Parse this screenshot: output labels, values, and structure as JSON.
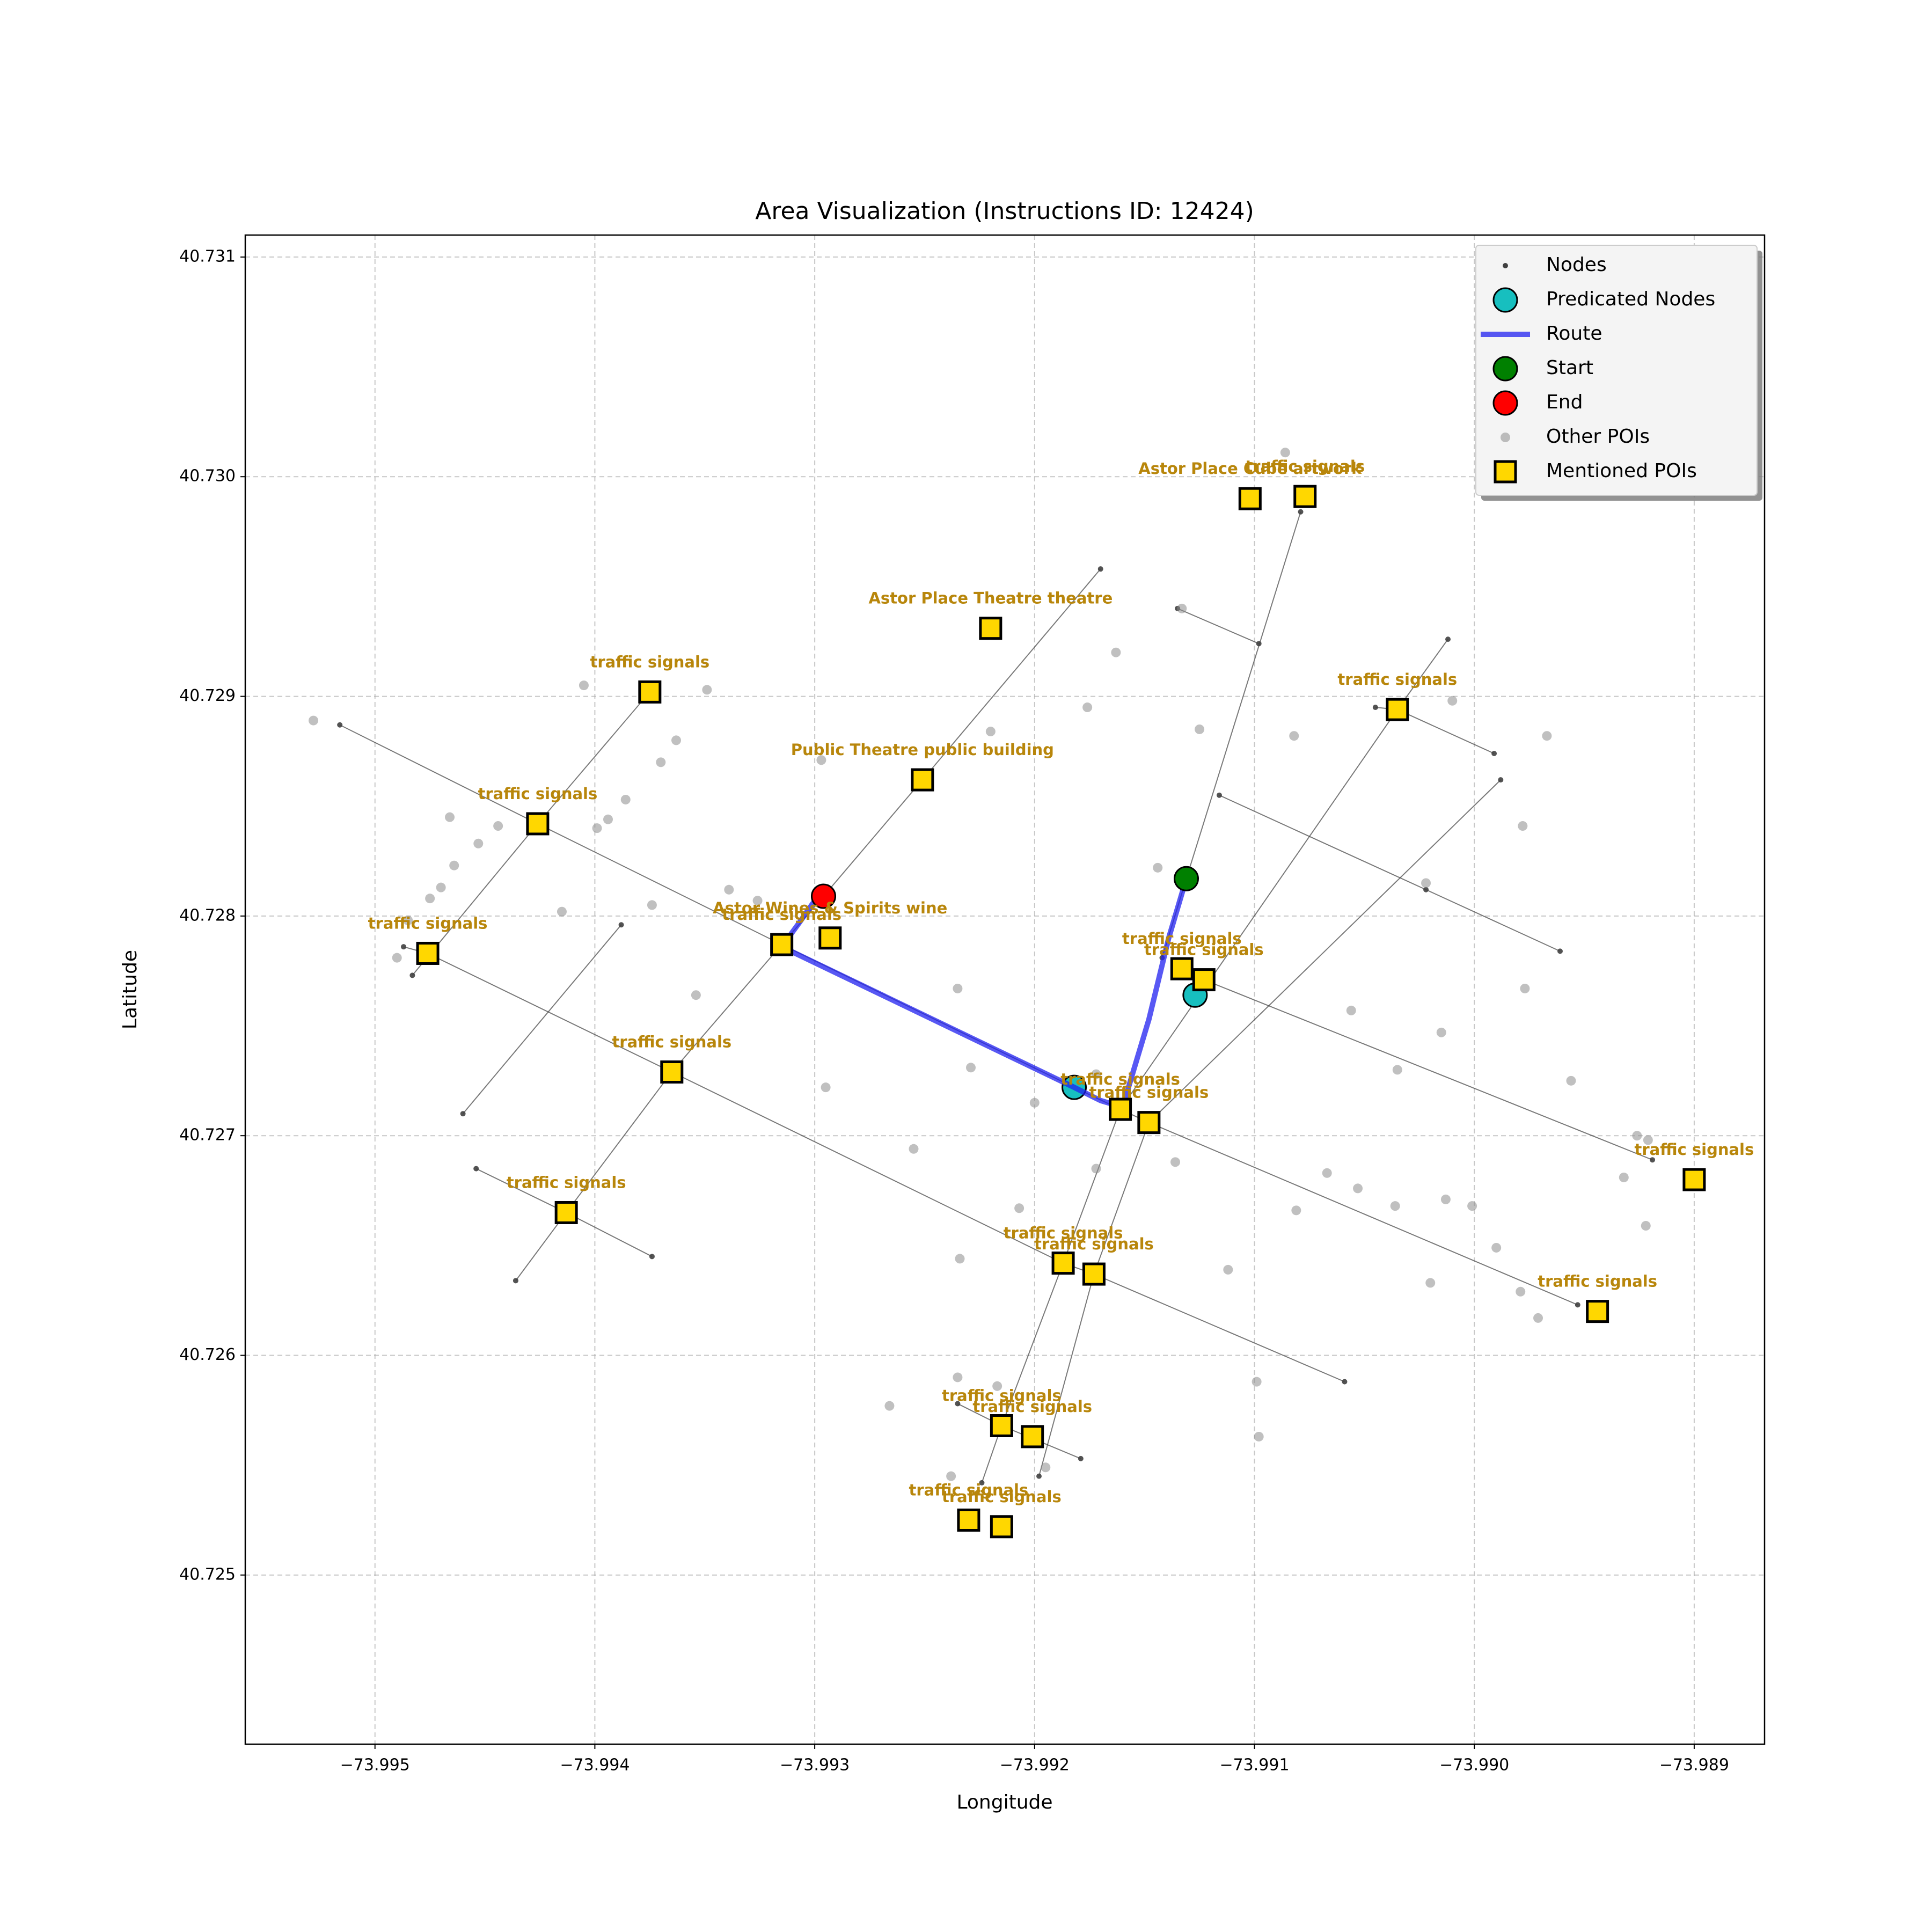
{
  "chart_data": {
    "type": "scatter",
    "title": "Area Visualization (Instructions ID: 12424)",
    "xlabel": "Longitude",
    "ylabel": "Latitude",
    "xlim": [
      -73.99559,
      -73.98868
    ],
    "ylim": [
      40.72423,
      40.7311
    ],
    "xticks": [
      {
        "value": -73.995,
        "label": "−73.995"
      },
      {
        "value": -73.994,
        "label": "−73.994"
      },
      {
        "value": -73.993,
        "label": "−73.993"
      },
      {
        "value": -73.992,
        "label": "−73.992"
      },
      {
        "value": -73.991,
        "label": "−73.991"
      },
      {
        "value": -73.99,
        "label": "−73.990"
      },
      {
        "value": -73.989,
        "label": "−73.989"
      }
    ],
    "yticks": [
      40.725,
      40.726,
      40.727,
      40.728,
      40.729,
      {
        "value": 40.73,
        "label": "40.730"
      },
      40.731
    ],
    "grid": true,
    "legend": "upper right",
    "series": [
      {
        "name": "Nodes",
        "color": "#404040",
        "marker": "dot",
        "streets": [
          {
            "x": [
              -73.99516,
              -73.99426,
              -73.99315,
              -73.99182,
              -73.99161,
              -73.99148,
              -73.98953
            ],
            "y": [
              40.72887,
              40.72842,
              40.72787,
              40.72722,
              40.72712,
              40.72706,
              40.72623
            ]
          },
          {
            "x": [
              -73.99487,
              -73.99476,
              -73.99365,
              -73.99187,
              -73.99173,
              -73.99059
            ],
            "y": [
              40.72786,
              40.72783,
              40.72729,
              40.72642,
              40.72637,
              40.72588
            ]
          },
          {
            "x": [
              -73.99454,
              -73.99413,
              -73.99374
            ],
            "y": [
              40.72685,
              40.72665,
              40.72645
            ]
          },
          {
            "x": [
              -73.99126,
              -73.99123,
              -73.98919
            ],
            "y": [
              40.72772,
              40.72771,
              40.72689
            ]
          },
          {
            "x": [
              -73.99116,
              -73.99022,
              -73.98961
            ],
            "y": [
              40.72855,
              40.72812,
              40.72784
            ]
          },
          {
            "x": [
              -73.99135,
              -73.99098
            ],
            "y": [
              40.7294,
              40.72924
            ]
          },
          {
            "x": [
              -73.99045,
              -73.99035,
              -73.98991
            ],
            "y": [
              40.72895,
              40.72894,
              40.72874
            ]
          },
          {
            "x": [
              -73.99235,
              -73.99215,
              -73.99179
            ],
            "y": [
              40.72578,
              40.72568,
              40.72553
            ]
          },
          {
            "x": [
              -73.9946,
              -73.99388
            ],
            "y": [
              40.7271,
              40.72796
            ]
          },
          {
            "x": [
              -73.99483,
              -73.99426,
              -73.99375
            ],
            "y": [
              40.72773,
              40.72842,
              40.72902
            ]
          },
          {
            "x": [
              -73.99436,
              -73.99413,
              -73.99365,
              -73.99315,
              -73.99296,
              -73.99251,
              -73.9917
            ],
            "y": [
              40.72634,
              40.72665,
              40.72729,
              40.72787,
              40.72809,
              40.72862,
              40.72958
            ]
          },
          {
            "x": [
              -73.99224,
              -73.99215,
              -73.99187,
              -73.99161,
              -73.99035,
              -73.99012
            ],
            "y": [
              40.72542,
              40.72568,
              40.72642,
              40.72712,
              40.72894,
              40.72926
            ]
          },
          {
            "x": [
              -73.99198,
              -73.99173,
              -73.99148,
              -73.98988
            ],
            "y": [
              40.72545,
              40.72637,
              40.72706,
              40.72862
            ]
          },
          {
            "x": [
              -73.99142,
              -73.99131,
              -73.99079
            ],
            "y": [
              40.72781,
              40.72817,
              40.72984
            ]
          }
        ]
      },
      {
        "name": "Predicated Nodes",
        "color": "#17bfbf",
        "marker": "circle",
        "x": [
          -73.99182,
          -73.99127
        ],
        "y": [
          40.72722,
          40.72764
        ]
      },
      {
        "name": "Route",
        "color": "#2020f0",
        "marker": "line",
        "x": [
          -73.99131,
          -73.99139,
          -73.99148,
          -73.9916,
          -73.9917,
          -73.99182,
          -73.99315,
          -73.99307,
          -73.993
        ],
        "y": [
          40.72817,
          40.7279,
          40.72753,
          40.72713,
          40.72716,
          40.72722,
          40.72786,
          40.72797,
          40.72807
        ]
      },
      {
        "name": "Start",
        "color": "#008000",
        "marker": "circle",
        "x": [
          -73.99131
        ],
        "y": [
          40.72817
        ]
      },
      {
        "name": "End",
        "color": "#ff0000",
        "marker": "circle",
        "x": [
          -73.99296
        ],
        "y": [
          40.72809
        ]
      },
      {
        "name": "Other POIs",
        "color": "#8c8c8c",
        "marker": "point",
        "x": [
          -73.99528,
          -73.99405,
          -73.99349,
          -73.99363,
          -73.9937,
          -73.99386,
          -73.99394,
          -73.99399,
          -73.99444,
          -73.99453,
          -73.99466,
          -73.99464,
          -73.9947,
          -73.99475,
          -73.99485,
          -73.9949,
          -73.99415,
          -73.99374,
          -73.99354,
          -73.99339,
          -73.99326,
          -73.99297,
          -73.99295,
          -73.99255,
          -73.99235,
          -73.99229,
          -73.9922,
          -73.99176,
          -73.99163,
          -73.99133,
          -73.99125,
          -73.99082,
          -73.99086,
          -73.99144,
          -73.99172,
          -73.99172,
          -73.992,
          -73.99207,
          -73.99234,
          -73.99136,
          -73.99112,
          -73.99099,
          -73.99098,
          -73.99081,
          -73.99067,
          -73.99053,
          -73.99056,
          -73.99036,
          -73.99035,
          -73.99022,
          -73.9902,
          -73.99015,
          -73.99013,
          -73.99001,
          -73.9901,
          -73.9899,
          -73.98979,
          -73.98978,
          -73.98977,
          -73.98971,
          -73.98967,
          -73.98956,
          -73.98932,
          -73.98926,
          -73.98921,
          -73.98922,
          -73.99266,
          -73.99235,
          -73.99217,
          -73.99238,
          -73.99195
        ],
        "y": [
          40.72889,
          40.72905,
          40.72903,
          40.7288,
          40.7287,
          40.72853,
          40.72844,
          40.7284,
          40.72841,
          40.72833,
          40.72845,
          40.72823,
          40.72813,
          40.72808,
          40.72798,
          40.72781,
          40.72802,
          40.72805,
          40.72764,
          40.72812,
          40.72807,
          40.72871,
          40.72722,
          40.72694,
          40.72767,
          40.72731,
          40.72884,
          40.72895,
          40.7292,
          40.7294,
          40.72885,
          40.72882,
          40.73011,
          40.72822,
          40.72728,
          40.72685,
          40.72715,
          40.72667,
          40.72644,
          40.72688,
          40.72639,
          40.72588,
          40.72563,
          40.72666,
          40.72683,
          40.72676,
          40.72757,
          40.72668,
          40.7273,
          40.72815,
          40.72633,
          40.72747,
          40.72671,
          40.72668,
          40.72898,
          40.72649,
          40.72629,
          40.72841,
          40.72767,
          40.72617,
          40.72882,
          40.72725,
          40.72681,
          40.727,
          40.72698,
          40.72659,
          40.72577,
          40.7259,
          40.72586,
          40.72545,
          40.72549
        ]
      },
      {
        "name": "Mentioned POIs",
        "color": "#ffd700",
        "label_color": "#b8860b",
        "marker": "square",
        "x": [
          -73.99102,
          -73.99077,
          -73.9922,
          -73.99375,
          -73.99035,
          -73.99251,
          -73.99426,
          -73.99293,
          -73.99315,
          -73.99476,
          -73.99133,
          -73.99123,
          -73.99365,
          -73.99161,
          -73.99148,
          -73.989,
          -73.99413,
          -73.99187,
          -73.99173,
          -73.98944,
          -73.99215,
          -73.99201,
          -73.9923,
          -73.99215
        ],
        "y": [
          40.7299,
          40.72991,
          40.72931,
          40.72902,
          40.72894,
          40.72862,
          40.72842,
          40.7279,
          40.72787,
          40.72783,
          40.72776,
          40.72771,
          40.72729,
          40.72712,
          40.72706,
          40.7268,
          40.72665,
          40.72642,
          40.72637,
          40.7262,
          40.72568,
          40.72563,
          40.72525,
          40.72522
        ],
        "labels": [
          "Astor Place Cube artwork",
          "traffic signals",
          "Astor Place Theatre theatre",
          "traffic signals",
          "traffic signals",
          "Public Theatre public building",
          "traffic signals",
          "Astor Wines & Spirits wine",
          "traffic signals",
          "traffic signals",
          "traffic signals",
          "traffic signals",
          "traffic signals",
          "traffic signals",
          "traffic signals",
          "traffic signals",
          "traffic signals",
          "traffic signals",
          "traffic signals",
          "traffic signals",
          "traffic signals",
          "traffic signals",
          "traffic signals",
          "traffic signals"
        ]
      }
    ]
  }
}
